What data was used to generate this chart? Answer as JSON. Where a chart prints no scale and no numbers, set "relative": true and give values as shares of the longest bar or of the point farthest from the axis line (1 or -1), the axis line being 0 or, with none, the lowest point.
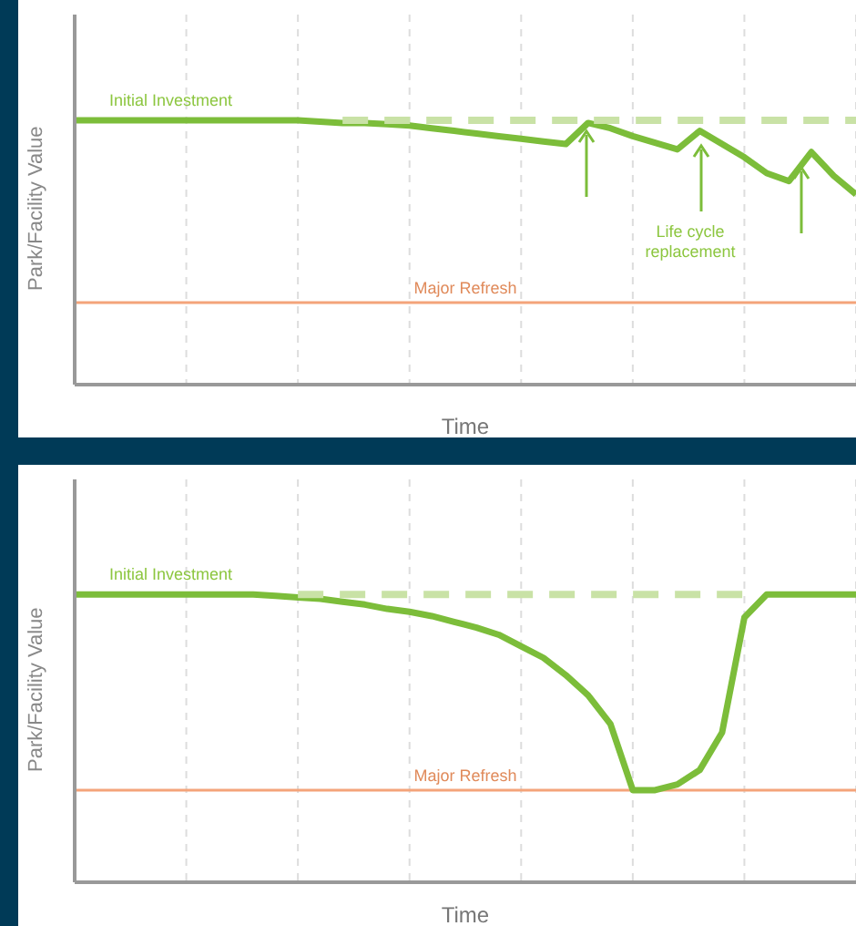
{
  "chart_data": [
    {
      "type": "line",
      "relative": true,
      "xlabel": "Time",
      "ylabel": "Park/Facility Value",
      "categories": [
        null,
        null,
        null,
        null,
        null,
        null,
        null,
        null,
        null,
        null,
        null,
        null,
        null,
        null,
        null,
        null,
        null,
        null,
        null,
        null,
        null,
        null,
        null,
        null,
        null,
        null,
        null,
        null,
        null,
        null,
        null,
        null,
        null,
        null,
        null,
        null
      ],
      "grid": "x",
      "marker": "none",
      "series": [
        {
          "name": "Initial Investment",
          "color": "#7cbd3a",
          "values": [
            1,
            1,
            1,
            1,
            1,
            1,
            1,
            1,
            1,
            1,
            1,
            0.995,
            0.99,
            0.99,
            0.985,
            0.98,
            0.97,
            0.96,
            0.95,
            0.94,
            0.93,
            0.92,
            0.91,
            0.99,
            0.97,
            0.94,
            0.915,
            0.89,
            0.96,
            0.91,
            0.86,
            0.8,
            0.77,
            0.88,
            0.79,
            0.72
          ]
        },
        {
          "color": "#c9e2a6",
          "line_style": "dashed",
          "values": [
            null,
            null,
            null,
            null,
            null,
            null,
            null,
            null,
            null,
            null,
            null,
            null,
            1,
            1,
            1,
            1,
            1,
            1,
            1,
            1,
            1,
            1,
            1,
            1,
            1,
            1,
            1,
            1,
            1,
            1,
            1,
            1,
            1,
            1,
            1,
            1
          ]
        }
      ],
      "ref_lines": [
        {
          "axis": "y",
          "value": 0.31,
          "label": "Major Refresh",
          "color": "#f4a47a"
        }
      ],
      "annotations": [
        "Life cycle replacement"
      ]
    },
    {
      "type": "line",
      "relative": true,
      "xlabel": "Time",
      "ylabel": "Park/Facility Value",
      "categories": [
        null,
        null,
        null,
        null,
        null,
        null,
        null,
        null,
        null,
        null,
        null,
        null,
        null,
        null,
        null,
        null,
        null,
        null,
        null,
        null,
        null,
        null,
        null,
        null,
        null,
        null,
        null,
        null,
        null,
        null,
        null,
        null,
        null,
        null,
        null,
        null
      ],
      "grid": "x",
      "marker": "none",
      "series": [
        {
          "name": "Initial Investment",
          "color": "#7cbd3a",
          "values": [
            1,
            1,
            1,
            1,
            1,
            1,
            1,
            1,
            1,
            0.995,
            0.99,
            0.985,
            0.975,
            0.965,
            0.95,
            0.94,
            0.925,
            0.905,
            0.885,
            0.86,
            0.82,
            0.78,
            0.72,
            0.65,
            0.55,
            0.32,
            0.32,
            0.34,
            0.39,
            0.52,
            0.92,
            1,
            1,
            1,
            1,
            1
          ]
        },
        {
          "color": "#c9e2a6",
          "line_style": "dashed",
          "values": [
            null,
            null,
            null,
            null,
            null,
            null,
            null,
            null,
            null,
            null,
            1,
            1,
            1,
            1,
            1,
            1,
            1,
            1,
            1,
            1,
            1,
            1,
            1,
            1,
            1,
            1,
            1,
            1,
            1,
            1,
            1,
            null,
            null,
            null,
            null,
            null
          ]
        }
      ],
      "ref_lines": [
        {
          "axis": "y",
          "value": 0.32,
          "label": "Major Refresh",
          "color": "#f4a47a"
        }
      ]
    }
  ]
}
